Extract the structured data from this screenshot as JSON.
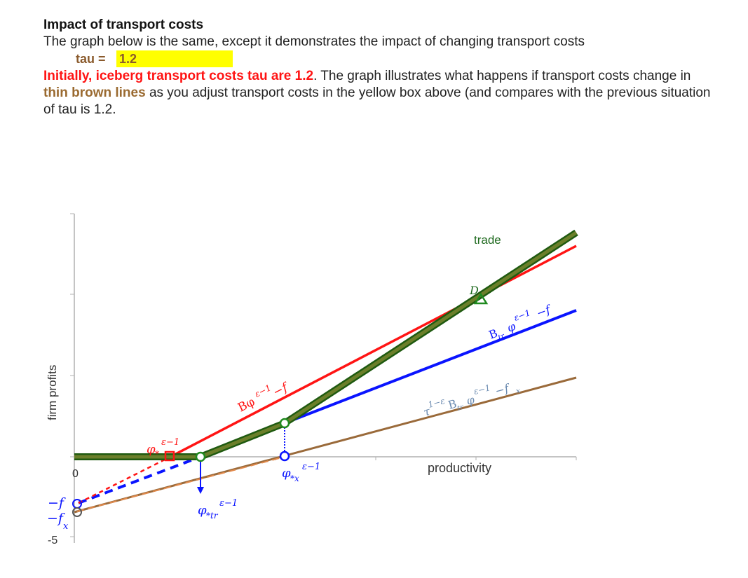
{
  "header": {
    "title": "Impact of transport costs",
    "line1": "The graph below is the same, except it demonstrates the impact of changing transport costs",
    "tau_label": "tau =",
    "tau_value": "1.2",
    "red_text": "Initially, iceberg transport costs tau are 1.2",
    "after_red": ". The graph illustrates what happens if transport costs change in ",
    "brown_text": "thin brown lines",
    "after_brown": " as you adjust transport costs in the yellow box above (and compares with the previous situation of tau is 1.2."
  },
  "colors": {
    "red": "#ff1414",
    "blue": "#0a14ff",
    "green_fill": "#5b7a1e",
    "green_edge": "#1f5a10",
    "brown": "#9a6a3a",
    "axis": "#b0b0b0",
    "yellow": "#ffff00"
  },
  "chart_data": {
    "type": "line",
    "ylabel": "firm profits",
    "xlabel": "productivity",
    "y_tick_label": "-5",
    "zero_label": "0",
    "xlim": [
      0,
      15
    ],
    "ylim": [
      -5,
      15
    ],
    "series": [
      {
        "name": "red",
        "points": [
          [
            0,
            -2
          ],
          [
            15,
            10
          ]
        ]
      },
      {
        "name": "blue",
        "points": [
          [
            0,
            -2
          ],
          [
            15,
            6
          ]
        ]
      },
      {
        "name": "brown",
        "points": [
          [
            0,
            -3
          ],
          [
            15,
            4
          ]
        ]
      },
      {
        "name": "trade",
        "points": [
          [
            0,
            0
          ],
          [
            3.4,
            0
          ],
          [
            5.6,
            1.7
          ],
          [
            15,
            10.7
          ]
        ]
      }
    ],
    "markers": [
      {
        "id": "blue-circle-top",
        "shape": "circle",
        "color": "#0a14ff",
        "at": [
          0,
          -2
        ]
      },
      {
        "id": "brown-circle",
        "shape": "circle",
        "color": "#9a6a3a",
        "at": [
          0,
          -3
        ]
      },
      {
        "id": "red-square",
        "shape": "square",
        "color": "#ff1414",
        "at": [
          2.5,
          0
        ]
      },
      {
        "id": "green-circle-left",
        "shape": "circle",
        "color": "#1f8a1f",
        "at": [
          3.4,
          0
        ]
      },
      {
        "id": "green-circle-mid",
        "shape": "circle",
        "color": "#1f8a1f",
        "at": [
          5.6,
          1.7
        ]
      },
      {
        "id": "blue-circle-bottom",
        "shape": "circle",
        "color": "#0a14ff",
        "at": [
          5.6,
          0
        ]
      },
      {
        "id": "triangle-D",
        "shape": "triangle",
        "color": "#1f8a1f",
        "at": [
          10.5,
          7.4
        ]
      }
    ],
    "annotations": {
      "trade": "trade",
      "D": "D",
      "neg_f": "−f",
      "neg_fx": "−f",
      "fx_sub": "x",
      "phi": "φ",
      "eps_minus_1": "ε−1",
      "star": "*",
      "star_tr": "*tr",
      "star_x": "*x",
      "B_phi": "Bφ",
      "minus_f": "−f",
      "B_tr": "B",
      "tr_sub": "tr",
      "tau_pow": "τ",
      "one_minus_eps": "1−ε",
      "minus_fx": "−f",
      "x_sub": "x"
    }
  }
}
